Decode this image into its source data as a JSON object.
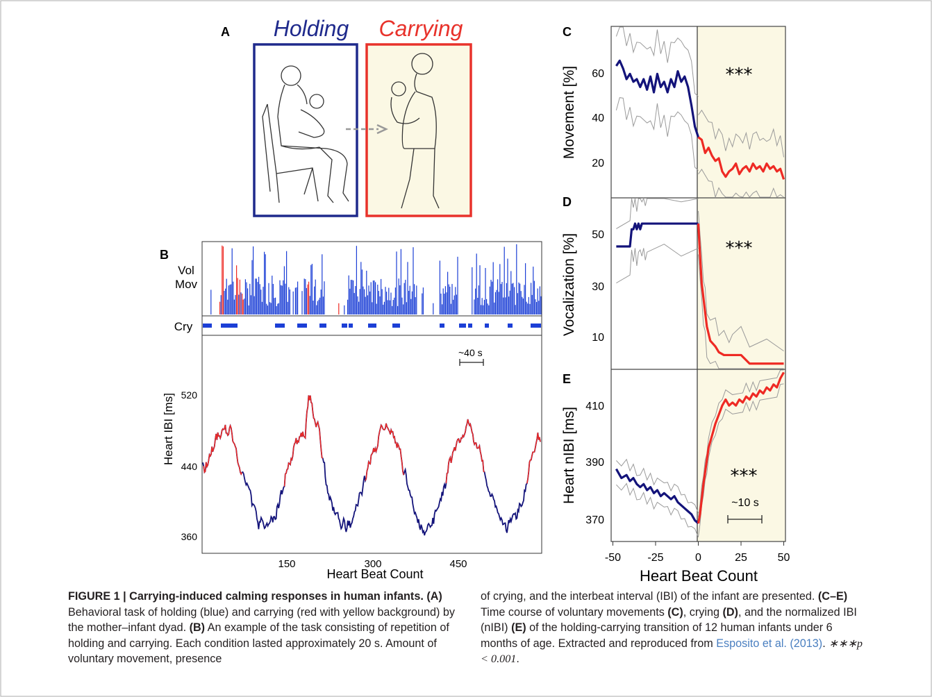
{
  "figure": {
    "panel_labels": {
      "a": "A",
      "b": "B",
      "c": "C",
      "d": "D",
      "e": "E"
    },
    "panel_a": {
      "holding_title": "Holding",
      "carrying_title": "Carrying",
      "holding_color": "#1f2a8c",
      "carrying_color": "#e8322b",
      "carrying_bg": "#fbf8e4"
    },
    "panel_b": {
      "track_labels": {
        "vol": "Vol",
        "mov": "Mov",
        "cry": "Cry"
      },
      "scale_bar_label": "~40 s",
      "ylabel": "Heart IBI [ms]",
      "xlabel": "Heart Beat Count",
      "yticks": [
        "520",
        "440",
        "360"
      ],
      "xticks": [
        "150",
        "300",
        "450"
      ]
    },
    "panel_c": {
      "ylabel": "Movement [%]",
      "yticks": [
        "60",
        "40",
        "20"
      ],
      "stars": "***"
    },
    "panel_d": {
      "ylabel": "Vocalization [%]",
      "yticks": [
        "50",
        "30",
        "10"
      ],
      "stars": "***"
    },
    "panel_e": {
      "ylabel": "Heart nIBI [ms]",
      "yticks": [
        "410",
        "390",
        "370"
      ],
      "stars": "***",
      "scale_bar_label": "~10 s"
    },
    "shared_x": {
      "xticks": [
        "-50",
        "-25",
        "0",
        "25",
        "50"
      ],
      "xlabel": "Heart Beat Count"
    },
    "colors": {
      "holding_line": "#13137a",
      "carrying_line": "#ee2a24",
      "mov_bars": "#1c3fd6",
      "sd_line": "#9a9a9a"
    }
  },
  "chart_data": [
    {
      "type": "line",
      "title": "Movement",
      "ylabel": "Movement [%]",
      "xlabel": "Heart Beat Count",
      "xlim": [
        -50,
        50
      ],
      "ylim": [
        5,
        70
      ],
      "series": [
        {
          "x": [
            -48,
            -46,
            -44,
            -42,
            -40,
            -38,
            -36,
            -34,
            -32,
            -30,
            -28,
            -26,
            -24,
            -22,
            -20,
            -18,
            -16,
            -14,
            -12,
            -10,
            -8,
            -6,
            -4,
            -2,
            0
          ],
          "y": [
            55,
            57,
            54,
            50,
            52,
            49,
            50,
            47,
            50,
            46,
            51,
            45,
            52,
            47,
            49,
            45,
            50,
            47,
            53,
            49,
            51,
            47,
            40,
            32,
            28
          ]
        },
        {
          "x": [
            0,
            2,
            4,
            6,
            8,
            10,
            12,
            14,
            16,
            18,
            20,
            22,
            24,
            26,
            28,
            30,
            32,
            34,
            36,
            38,
            40,
            42,
            44,
            46,
            48,
            50
          ],
          "y": [
            28,
            27,
            22,
            24,
            21,
            19,
            20,
            15,
            13,
            15,
            16,
            18,
            14,
            16,
            17,
            15,
            18,
            16,
            17,
            15,
            18,
            16,
            17,
            15,
            16,
            12
          ]
        }
      ]
    },
    {
      "type": "line",
      "title": "Vocalization",
      "ylabel": "Vocalization [%]",
      "xlabel": "Heart Beat Count",
      "xlim": [
        -50,
        50
      ],
      "ylim": [
        0,
        60
      ],
      "series": [
        {
          "x": [
            -48,
            -40,
            -39,
            -38,
            -37,
            -36,
            -35,
            -34,
            -33,
            -32,
            -31,
            -30,
            -20,
            -10,
            0
          ],
          "y": [
            43,
            43,
            49,
            49,
            51,
            49,
            51,
            49,
            51,
            51,
            51,
            51,
            51,
            51,
            51
          ]
        },
        {
          "x": [
            0,
            1,
            2,
            3,
            4,
            5,
            7,
            10,
            12,
            15,
            18,
            20,
            25,
            30,
            40,
            50
          ],
          "y": [
            51,
            40,
            30,
            25,
            20,
            15,
            10,
            8,
            6,
            5,
            5,
            5,
            5,
            2,
            2,
            2
          ]
        }
      ]
    },
    {
      "type": "line",
      "title": "Heart nIBI",
      "ylabel": "Heart nIBI [ms]",
      "xlabel": "Heart Beat Count",
      "xlim": [
        -50,
        50
      ],
      "ylim": [
        363,
        420
      ],
      "series": [
        {
          "x": [
            -48,
            -45,
            -42,
            -40,
            -38,
            -36,
            -34,
            -32,
            -30,
            -28,
            -26,
            -24,
            -22,
            -20,
            -18,
            -16,
            -14,
            -12,
            -10,
            -8,
            -6,
            -4,
            -2,
            0
          ],
          "y": [
            387,
            384,
            385,
            383,
            384,
            382,
            381,
            382,
            380,
            381,
            379,
            380,
            378,
            379,
            378,
            377,
            378,
            376,
            375,
            374,
            373,
            372,
            370,
            369
          ]
        },
        {
          "x": [
            0,
            1,
            2,
            3,
            4,
            5,
            6,
            8,
            10,
            12,
            14,
            16,
            18,
            20,
            22,
            24,
            26,
            28,
            30,
            32,
            34,
            36,
            38,
            40,
            42,
            44,
            46,
            48,
            50
          ],
          "y": [
            369,
            372,
            377,
            382,
            386,
            390,
            394,
            398,
            402,
            405,
            408,
            410,
            408,
            409,
            408,
            410,
            409,
            411,
            410,
            412,
            411,
            413,
            412,
            414,
            413,
            415,
            414,
            417,
            419
          ]
        }
      ]
    }
  ],
  "caption": {
    "left_html_parts": {
      "head": "FIGURE 1 | Carrying-induced calming responses in human infants.",
      "a_tag": "(A)",
      "a_text": " Behavioral task of holding (blue) and carrying (red with yellow background) by the mother–infant dyad. ",
      "b_tag": "(B)",
      "b_text": " An example of the task consisting of repetition of holding and carrying. Each condition lasted approximately 20 s. Amount of voluntary movement, presence"
    },
    "right_parts": {
      "t1": "of crying, and the interbeat interval (IBI) of the infant are presented. ",
      "ce_tag": "(C–E)",
      "t2": " Time course of voluntary movements ",
      "c_tag": "(C)",
      "t3": ", crying ",
      "d_tag": "(D)",
      "t4": ", and the normalized IBI (nIBI) ",
      "e_tag": "(E)",
      "t5": " of the holding-carrying transition of 12 human infants under 6 months of age. Extracted and reproduced from ",
      "citation": "Esposito et al. (2013)",
      "t6": ". ",
      "pvalue": "∗∗∗p < 0.001",
      "t7": "."
    }
  }
}
